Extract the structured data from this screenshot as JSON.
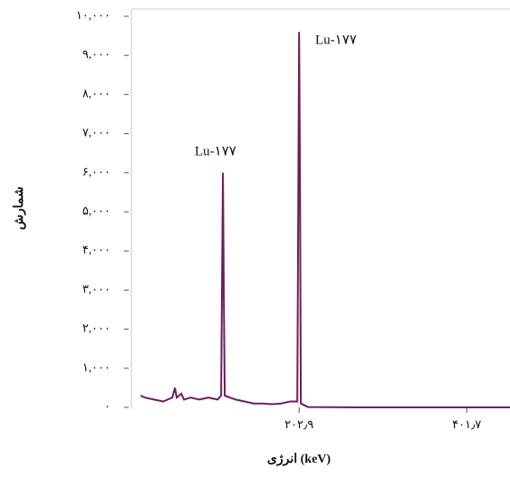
{
  "chart_data": {
    "type": "line",
    "x_label": "انرژی (keV)",
    "y_label": "شمارش",
    "color": "#6b1f5f",
    "annotations": [
      "Lu-۱۷۷",
      "Lu-۱۷۷"
    ],
    "x": [
      14.8,
      20.2,
      31,
      41.7,
      52.5,
      55.7,
      57.8,
      63.2,
      66.4,
      74,
      84.7,
      95.4,
      106.2,
      110.5,
      112.6,
      113.7,
      114.7,
      127.7,
      138.4,
      149.2,
      159.9,
      170.7,
      181.4,
      192.2,
      200.8,
      202.9,
      204,
      205,
      213.6,
      278,
      453
    ],
    "values": [
      300,
      250,
      200,
      150,
      250,
      500,
      250,
      350,
      200,
      250,
      200,
      250,
      200,
      300,
      6000,
      2800,
      300,
      200,
      150,
      100,
      100,
      80,
      100,
      150,
      150,
      9600,
      5700,
      100,
      10,
      0,
      0
    ],
    "xlim": [
      4,
      453
    ],
    "ylim": [
      0,
      10000
    ],
    "xticks": [
      {
        "value": 202.9,
        "label": "۲۰۲٫۹"
      },
      {
        "value": 401.7,
        "label": "۴۰۱٫۷"
      }
    ],
    "yticks": [
      {
        "value": 0,
        "label": "۰"
      },
      {
        "value": 1000,
        "label": "۱,۰۰۰"
      },
      {
        "value": 2000,
        "label": "۲,۰۰۰"
      },
      {
        "value": 3000,
        "label": "۳,۰۰۰"
      },
      {
        "value": 4000,
        "label": "۴,۰۰۰"
      },
      {
        "value": 5000,
        "label": "۵,۰۰۰"
      },
      {
        "value": 6000,
        "label": "۶,۰۰۰"
      },
      {
        "value": 7000,
        "label": "۷,۰۰۰"
      },
      {
        "value": 8000,
        "label": "۸,۰۰۰"
      },
      {
        "value": 9000,
        "label": "۹,۰۰۰"
      },
      {
        "value": 10000,
        "label": "۱۰,۰۰۰"
      }
    ]
  }
}
